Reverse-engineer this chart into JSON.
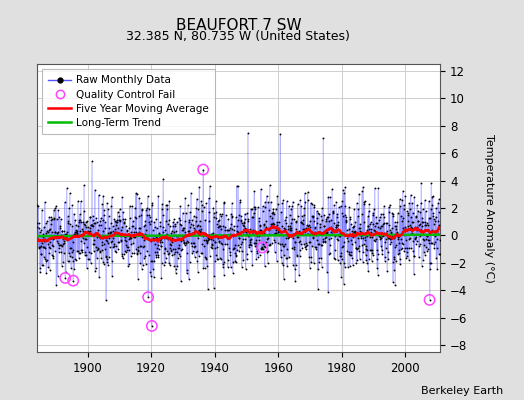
{
  "title": "BEAUFORT 7 SW",
  "subtitle": "32.385 N, 80.735 W (United States)",
  "ylabel": "Temperature Anomaly (°C)",
  "credit": "Berkeley Earth",
  "xlim": [
    1884,
    2011
  ],
  "ylim": [
    -8.5,
    12.5
  ],
  "yticks": [
    -8,
    -6,
    -4,
    -2,
    0,
    2,
    4,
    6,
    8,
    10,
    12
  ],
  "xticks": [
    1900,
    1920,
    1940,
    1960,
    1980,
    2000
  ],
  "start_year": 1884,
  "end_year": 2010,
  "seed": 42,
  "bg_color": "#e0e0e0",
  "plot_bg_color": "#ffffff",
  "raw_line_color": "#5555ff",
  "raw_dot_color": "#000000",
  "ma_color": "#ff0000",
  "trend_color": "#00bb00",
  "qc_color": "#ff44ff",
  "grid_color": "#c8c8c8",
  "title_fontsize": 11,
  "subtitle_fontsize": 9,
  "ylabel_fontsize": 8,
  "tick_fontsize": 8.5,
  "legend_fontsize": 7.5,
  "credit_fontsize": 8
}
